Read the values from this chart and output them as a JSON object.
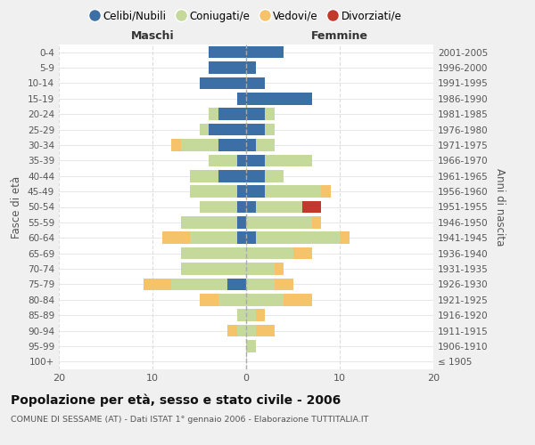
{
  "age_groups": [
    "100+",
    "95-99",
    "90-94",
    "85-89",
    "80-84",
    "75-79",
    "70-74",
    "65-69",
    "60-64",
    "55-59",
    "50-54",
    "45-49",
    "40-44",
    "35-39",
    "30-34",
    "25-29",
    "20-24",
    "15-19",
    "10-14",
    "5-9",
    "0-4"
  ],
  "birth_years": [
    "≤ 1905",
    "1906-1910",
    "1911-1915",
    "1916-1920",
    "1921-1925",
    "1926-1930",
    "1931-1935",
    "1936-1940",
    "1941-1945",
    "1946-1950",
    "1951-1955",
    "1956-1960",
    "1961-1965",
    "1966-1970",
    "1971-1975",
    "1976-1980",
    "1981-1985",
    "1986-1990",
    "1991-1995",
    "1996-2000",
    "2001-2005"
  ],
  "colors": {
    "celibi": "#3b6fa5",
    "coniugati": "#c5d99a",
    "vedovi": "#f5c46a",
    "divorziati": "#c0392b"
  },
  "maschi": {
    "celibi": [
      0,
      0,
      0,
      0,
      0,
      2,
      0,
      0,
      1,
      1,
      1,
      1,
      3,
      1,
      3,
      4,
      3,
      1,
      5,
      4,
      4
    ],
    "coniugati": [
      0,
      0,
      1,
      1,
      3,
      6,
      7,
      7,
      5,
      6,
      4,
      5,
      3,
      3,
      4,
      1,
      1,
      0,
      0,
      0,
      0
    ],
    "vedovi": [
      0,
      0,
      1,
      0,
      2,
      3,
      0,
      0,
      3,
      0,
      0,
      0,
      0,
      0,
      1,
      0,
      0,
      0,
      0,
      0,
      0
    ],
    "divorziati": [
      0,
      0,
      0,
      0,
      0,
      0,
      0,
      0,
      0,
      0,
      0,
      0,
      0,
      0,
      0,
      0,
      0,
      0,
      0,
      0,
      0
    ]
  },
  "femmine": {
    "celibi": [
      0,
      0,
      0,
      0,
      0,
      0,
      0,
      0,
      1,
      0,
      1,
      2,
      2,
      2,
      1,
      2,
      2,
      7,
      2,
      1,
      4
    ],
    "coniugati": [
      0,
      1,
      1,
      1,
      4,
      3,
      3,
      5,
      9,
      7,
      5,
      6,
      2,
      5,
      2,
      1,
      1,
      0,
      0,
      0,
      0
    ],
    "vedovi": [
      0,
      0,
      2,
      1,
      3,
      2,
      1,
      2,
      1,
      1,
      0,
      1,
      0,
      0,
      0,
      0,
      0,
      0,
      0,
      0,
      0
    ],
    "divorziati": [
      0,
      0,
      0,
      0,
      0,
      0,
      0,
      0,
      0,
      0,
      2,
      0,
      0,
      0,
      0,
      0,
      0,
      0,
      0,
      0,
      0
    ]
  },
  "xlim": 20,
  "title": "Popolazione per età, sesso e stato civile - 2006",
  "subtitle": "COMUNE DI SESSAME (AT) - Dati ISTAT 1° gennaio 2006 - Elaborazione TUTTITALIA.IT",
  "ylabel_left": "Fasce di età",
  "ylabel_right": "Anni di nascita",
  "xlabel_left": "Maschi",
  "xlabel_right": "Femmine",
  "legend_labels": [
    "Celibi/Nubili",
    "Coniugati/e",
    "Vedovi/e",
    "Divorziati/e"
  ],
  "bg_color": "#f0f0f0",
  "plot_bg": "#ffffff"
}
